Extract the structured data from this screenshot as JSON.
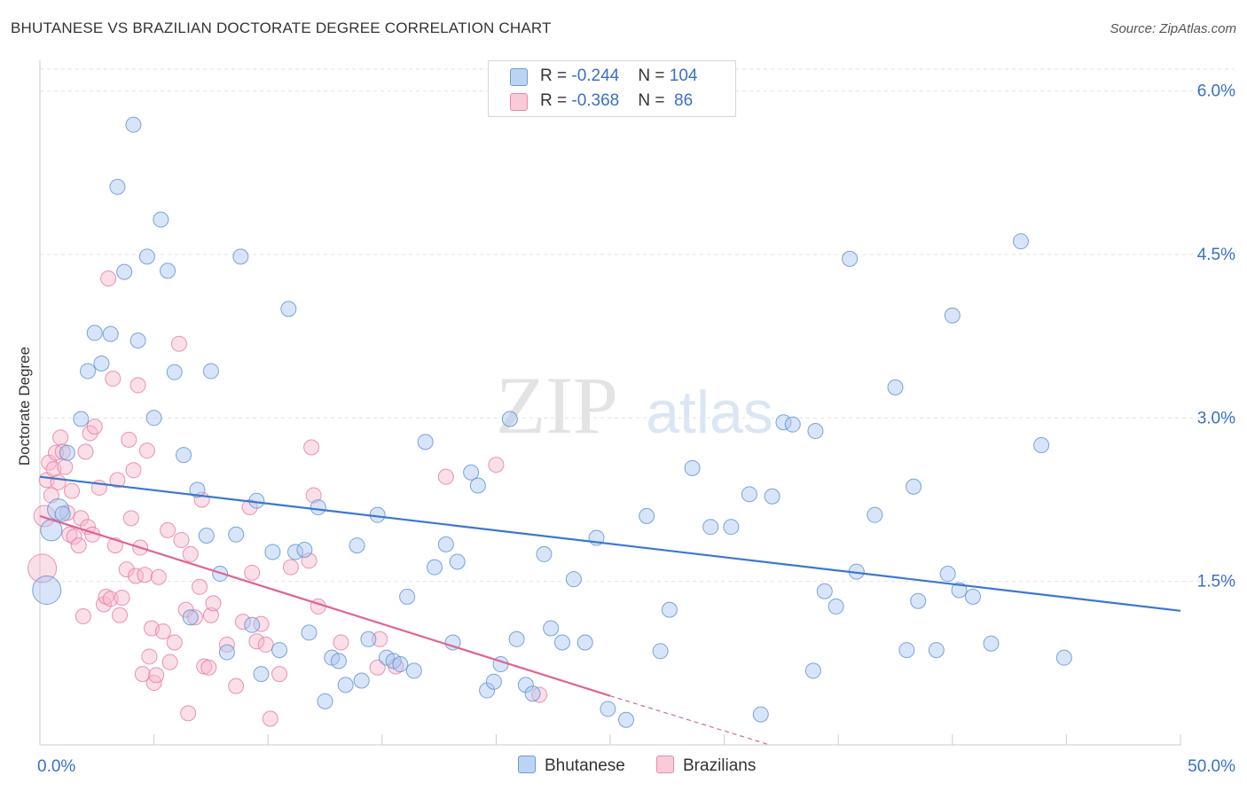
{
  "header": {
    "title": "BHUTANESE VS BRAZILIAN DOCTORATE DEGREE CORRELATION CHART",
    "source": "Source: ZipAtlas.com"
  },
  "watermark": {
    "zip": "ZIP",
    "atlas": "atlas"
  },
  "legend": {
    "series": [
      {
        "name": "Bhutanese",
        "r_label": "R = ",
        "r_value": "-0.244",
        "n_label": "N = ",
        "n_value": "104",
        "fill": "#a9c6ef",
        "stroke": "#5b8fd6"
      },
      {
        "name": "Brazilians",
        "r_label": "R = ",
        "r_value": "-0.368",
        "n_label": "N = ",
        "n_value": " 86",
        "fill": "#f6b9cc",
        "stroke": "#e6799d"
      }
    ]
  },
  "chart_data": {
    "type": "scatter",
    "title": "BHUTANESE VS BRAZILIAN DOCTORATE DEGREE CORRELATION CHART",
    "xlabel": "",
    "ylabel": "Doctorate Degree",
    "xlim": [
      0,
      50
    ],
    "ylim": [
      0,
      6.2
    ],
    "x_tick_labels": [
      "0.0%",
      "50.0%"
    ],
    "y_ticks": [
      1.5,
      3.0,
      4.5,
      6.0
    ],
    "y_tick_labels": [
      "1.5%",
      "3.0%",
      "4.5%",
      "6.0%"
    ],
    "grid": true,
    "colors": {
      "blue": "#3a78d0",
      "pink": "#e0648c",
      "axis_text": "#3a6fc4",
      "grid": "#e2e2e2"
    },
    "series": [
      {
        "name": "Bhutanese",
        "trend": {
          "x": [
            0,
            50
          ],
          "y": [
            2.46,
            1.23
          ]
        },
        "points": [
          [
            0.3,
            1.42
          ],
          [
            0.5,
            1.97
          ],
          [
            0.8,
            2.16
          ],
          [
            1.0,
            2.12
          ],
          [
            1.2,
            2.68
          ],
          [
            1.8,
            2.99
          ],
          [
            2.1,
            3.43
          ],
          [
            2.4,
            3.78
          ],
          [
            2.7,
            3.5
          ],
          [
            3.1,
            3.77
          ],
          [
            3.4,
            5.12
          ],
          [
            3.7,
            4.34
          ],
          [
            4.1,
            5.69
          ],
          [
            4.3,
            3.71
          ],
          [
            4.7,
            4.48
          ],
          [
            5.0,
            3.0
          ],
          [
            5.3,
            4.82
          ],
          [
            5.6,
            4.35
          ],
          [
            5.9,
            3.42
          ],
          [
            6.3,
            2.66
          ],
          [
            6.6,
            1.17
          ],
          [
            6.9,
            2.34
          ],
          [
            7.3,
            1.92
          ],
          [
            7.5,
            3.43
          ],
          [
            7.9,
            1.57
          ],
          [
            8.2,
            0.85
          ],
          [
            8.6,
            1.93
          ],
          [
            8.8,
            4.48
          ],
          [
            9.3,
            1.1
          ],
          [
            9.5,
            2.24
          ],
          [
            9.7,
            0.65
          ],
          [
            10.2,
            1.77
          ],
          [
            10.5,
            0.87
          ],
          [
            10.9,
            4.0
          ],
          [
            11.2,
            1.77
          ],
          [
            11.6,
            1.79
          ],
          [
            11.8,
            1.03
          ],
          [
            12.2,
            2.18
          ],
          [
            12.5,
            0.4
          ],
          [
            12.8,
            0.8
          ],
          [
            13.1,
            0.77
          ],
          [
            13.4,
            0.55
          ],
          [
            13.9,
            1.83
          ],
          [
            14.1,
            0.59
          ],
          [
            14.4,
            0.97
          ],
          [
            14.8,
            2.11
          ],
          [
            15.2,
            0.8
          ],
          [
            15.5,
            0.77
          ],
          [
            15.8,
            0.74
          ],
          [
            16.1,
            1.36
          ],
          [
            16.4,
            0.68
          ],
          [
            16.9,
            2.78
          ],
          [
            17.3,
            1.63
          ],
          [
            17.8,
            1.84
          ],
          [
            18.1,
            0.94
          ],
          [
            18.3,
            1.68
          ],
          [
            18.9,
            2.5
          ],
          [
            19.2,
            2.38
          ],
          [
            19.6,
            0.5
          ],
          [
            19.9,
            0.58
          ],
          [
            20.2,
            0.74
          ],
          [
            20.6,
            2.99
          ],
          [
            20.9,
            0.97
          ],
          [
            21.3,
            0.55
          ],
          [
            21.6,
            0.47
          ],
          [
            22.1,
            1.75
          ],
          [
            22.4,
            1.07
          ],
          [
            22.9,
            0.94
          ],
          [
            23.4,
            1.52
          ],
          [
            23.9,
            0.94
          ],
          [
            24.4,
            1.9
          ],
          [
            24.9,
            0.33
          ],
          [
            25.7,
            0.23
          ],
          [
            26.6,
            2.1
          ],
          [
            27.2,
            0.86
          ],
          [
            27.6,
            1.24
          ],
          [
            28.6,
            2.54
          ],
          [
            29.4,
            2.0
          ],
          [
            30.3,
            2.0
          ],
          [
            31.1,
            2.3
          ],
          [
            31.6,
            0.28
          ],
          [
            32.1,
            2.28
          ],
          [
            32.6,
            2.96
          ],
          [
            33.0,
            2.94
          ],
          [
            33.9,
            0.68
          ],
          [
            34.4,
            1.41
          ],
          [
            34.9,
            1.27
          ],
          [
            35.5,
            4.46
          ],
          [
            35.8,
            1.59
          ],
          [
            36.6,
            2.11
          ],
          [
            37.5,
            3.28
          ],
          [
            38.0,
            0.87
          ],
          [
            38.3,
            2.37
          ],
          [
            38.5,
            1.32
          ],
          [
            39.3,
            0.87
          ],
          [
            39.8,
            1.57
          ],
          [
            40.0,
            3.94
          ],
          [
            40.3,
            1.42
          ],
          [
            40.9,
            1.36
          ],
          [
            41.7,
            0.93
          ],
          [
            43.0,
            4.62
          ],
          [
            43.9,
            2.75
          ],
          [
            44.9,
            0.8
          ],
          [
            34.0,
            2.88
          ]
        ],
        "sizes": {
          "0.3,1.42": "large",
          "0.5,1.97": "medium",
          "0.8,2.16": "medium"
        }
      },
      {
        "name": "Brazilians",
        "trend": {
          "x": [
            0,
            25
          ],
          "y": [
            2.1,
            0.45
          ],
          "dashed_x": [
            25,
            32
          ],
          "dashed_y": [
            0.45,
            0.0
          ]
        },
        "points": [
          [
            0.1,
            1.62
          ],
          [
            0.2,
            2.1
          ],
          [
            0.3,
            2.43
          ],
          [
            0.4,
            2.59
          ],
          [
            0.5,
            2.29
          ],
          [
            0.6,
            2.53
          ],
          [
            0.7,
            2.68
          ],
          [
            0.8,
            2.41
          ],
          [
            0.9,
            2.82
          ],
          [
            1.0,
            2.69
          ],
          [
            1.1,
            2.55
          ],
          [
            1.2,
            2.13
          ],
          [
            1.3,
            1.93
          ],
          [
            1.4,
            2.33
          ],
          [
            1.5,
            1.91
          ],
          [
            1.7,
            1.83
          ],
          [
            1.8,
            2.08
          ],
          [
            1.9,
            1.18
          ],
          [
            2.0,
            2.69
          ],
          [
            2.1,
            2.0
          ],
          [
            2.2,
            2.86
          ],
          [
            2.3,
            1.93
          ],
          [
            2.4,
            2.92
          ],
          [
            2.6,
            2.36
          ],
          [
            2.8,
            1.29
          ],
          [
            2.9,
            1.36
          ],
          [
            3.0,
            4.28
          ],
          [
            3.1,
            1.34
          ],
          [
            3.2,
            3.36
          ],
          [
            3.3,
            1.83
          ],
          [
            3.4,
            2.43
          ],
          [
            3.5,
            1.19
          ],
          [
            3.6,
            1.35
          ],
          [
            3.8,
            1.61
          ],
          [
            3.9,
            2.8
          ],
          [
            4.0,
            2.08
          ],
          [
            4.1,
            2.52
          ],
          [
            4.2,
            1.55
          ],
          [
            4.3,
            3.3
          ],
          [
            4.4,
            1.81
          ],
          [
            4.5,
            0.65
          ],
          [
            4.6,
            1.56
          ],
          [
            4.7,
            2.7
          ],
          [
            4.8,
            0.81
          ],
          [
            4.9,
            1.07
          ],
          [
            5.0,
            0.57
          ],
          [
            5.1,
            0.64
          ],
          [
            5.2,
            1.54
          ],
          [
            5.4,
            1.04
          ],
          [
            5.6,
            1.97
          ],
          [
            5.7,
            0.76
          ],
          [
            5.9,
            0.94
          ],
          [
            6.1,
            3.68
          ],
          [
            6.2,
            1.88
          ],
          [
            6.4,
            1.24
          ],
          [
            6.5,
            0.29
          ],
          [
            6.6,
            1.75
          ],
          [
            6.8,
            1.17
          ],
          [
            7.0,
            1.45
          ],
          [
            7.1,
            2.25
          ],
          [
            7.2,
            0.72
          ],
          [
            7.4,
            0.71
          ],
          [
            7.5,
            1.19
          ],
          [
            7.6,
            1.3
          ],
          [
            8.2,
            0.92
          ],
          [
            8.6,
            0.54
          ],
          [
            8.9,
            1.13
          ],
          [
            9.2,
            2.18
          ],
          [
            9.3,
            1.58
          ],
          [
            9.5,
            0.95
          ],
          [
            9.7,
            1.11
          ],
          [
            9.9,
            0.92
          ],
          [
            10.1,
            0.24
          ],
          [
            10.5,
            0.65
          ],
          [
            11.0,
            1.63
          ],
          [
            11.8,
            1.69
          ],
          [
            11.9,
            2.73
          ],
          [
            12.0,
            2.29
          ],
          [
            12.2,
            1.27
          ],
          [
            13.2,
            0.94
          ],
          [
            14.9,
            0.97
          ],
          [
            14.8,
            0.71
          ],
          [
            15.6,
            0.72
          ],
          [
            17.8,
            2.46
          ],
          [
            20.0,
            2.57
          ],
          [
            21.9,
            0.46
          ]
        ],
        "sizes": {
          "0.1,1.62": "large",
          "0.2,2.1": "medium"
        }
      }
    ]
  }
}
